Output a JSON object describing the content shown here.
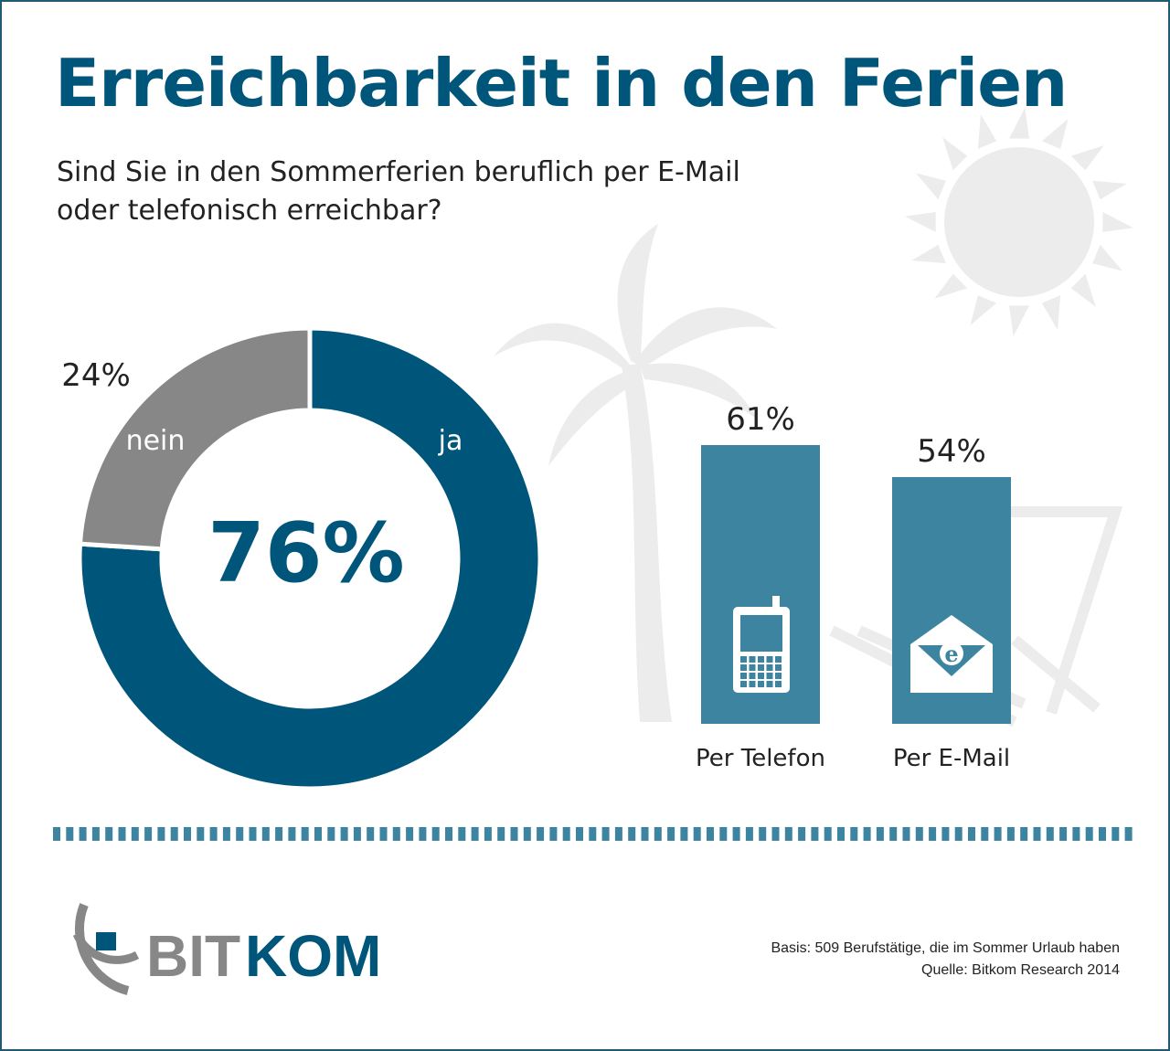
{
  "title": "Erreichbarkeit in den Ferien",
  "subtitle_line1": "Sind Sie in den Sommerferien beruflich per E-Mail",
  "subtitle_line2": "oder telefonisch erreichbar?",
  "chart_data": [
    {
      "type": "pie",
      "variant": "donut",
      "center_label": "76%",
      "slices": [
        {
          "label": "ja",
          "value": 76,
          "value_label": "76%",
          "color": "#00557a"
        },
        {
          "label": "nein",
          "value": 24,
          "value_label": "24%",
          "color": "#878787"
        }
      ]
    },
    {
      "type": "bar",
      "categories": [
        "Per Telefon",
        "Per E-Mail"
      ],
      "values": [
        61,
        54
      ],
      "value_labels": [
        "61%",
        "54%"
      ],
      "icons": [
        "mobile-phone-icon",
        "envelope-email-icon"
      ],
      "color": "#3d84a0",
      "ylim": [
        0,
        100
      ]
    }
  ],
  "footer": {
    "basis": "Basis: 509 Berufstätige, die im Sommer Urlaub haben",
    "source": "Quelle: Bitkom Research 2014"
  },
  "logo": {
    "text_gray": "BIT",
    "text_blue": "KOM"
  },
  "colors": {
    "primary": "#00557a",
    "bar": "#3d84a0",
    "gray": "#878787",
    "decoration": "#ececec"
  }
}
